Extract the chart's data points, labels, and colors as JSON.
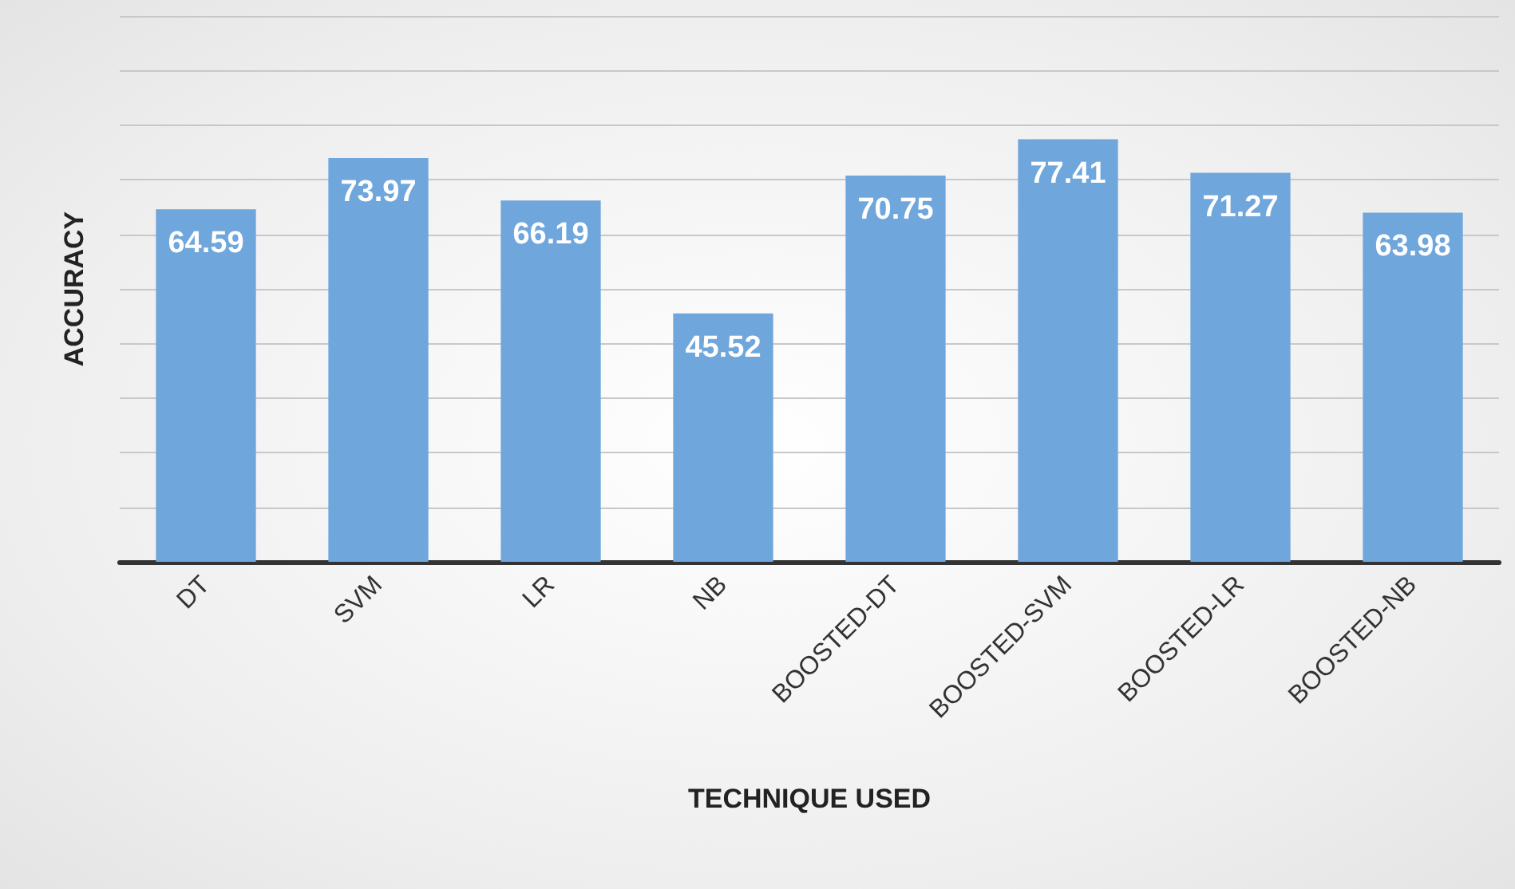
{
  "chart_data": {
    "type": "bar",
    "xlabel": "TECHNIQUE USED",
    "ylabel": "ACCURACY",
    "categories": [
      "DT",
      "SVM",
      "LR",
      "NB",
      "BOOSTED-DT",
      "BOOSTED-SVM",
      "BOOSTED-LR",
      "BOOSTED-NB"
    ],
    "values": [
      64.59,
      73.97,
      66.19,
      45.52,
      70.75,
      77.41,
      71.27,
      63.98
    ],
    "color": "#6fa6dc",
    "ylim": [
      0,
      100
    ],
    "yticks": [
      {
        "value": 0,
        "label": null
      },
      {
        "value": 10,
        "label": null
      },
      {
        "value": 20,
        "label": null
      },
      {
        "value": 30,
        "label": null
      },
      {
        "value": 40,
        "label": null
      },
      {
        "value": 50,
        "label": null
      },
      {
        "value": 60,
        "label": null
      },
      {
        "value": 70,
        "label": null
      },
      {
        "value": 80,
        "label": null
      },
      {
        "value": 90,
        "label": null
      },
      {
        "value": 100,
        "label": null
      }
    ],
    "tick_labels": "x",
    "grid": "y",
    "data_labels": true
  }
}
